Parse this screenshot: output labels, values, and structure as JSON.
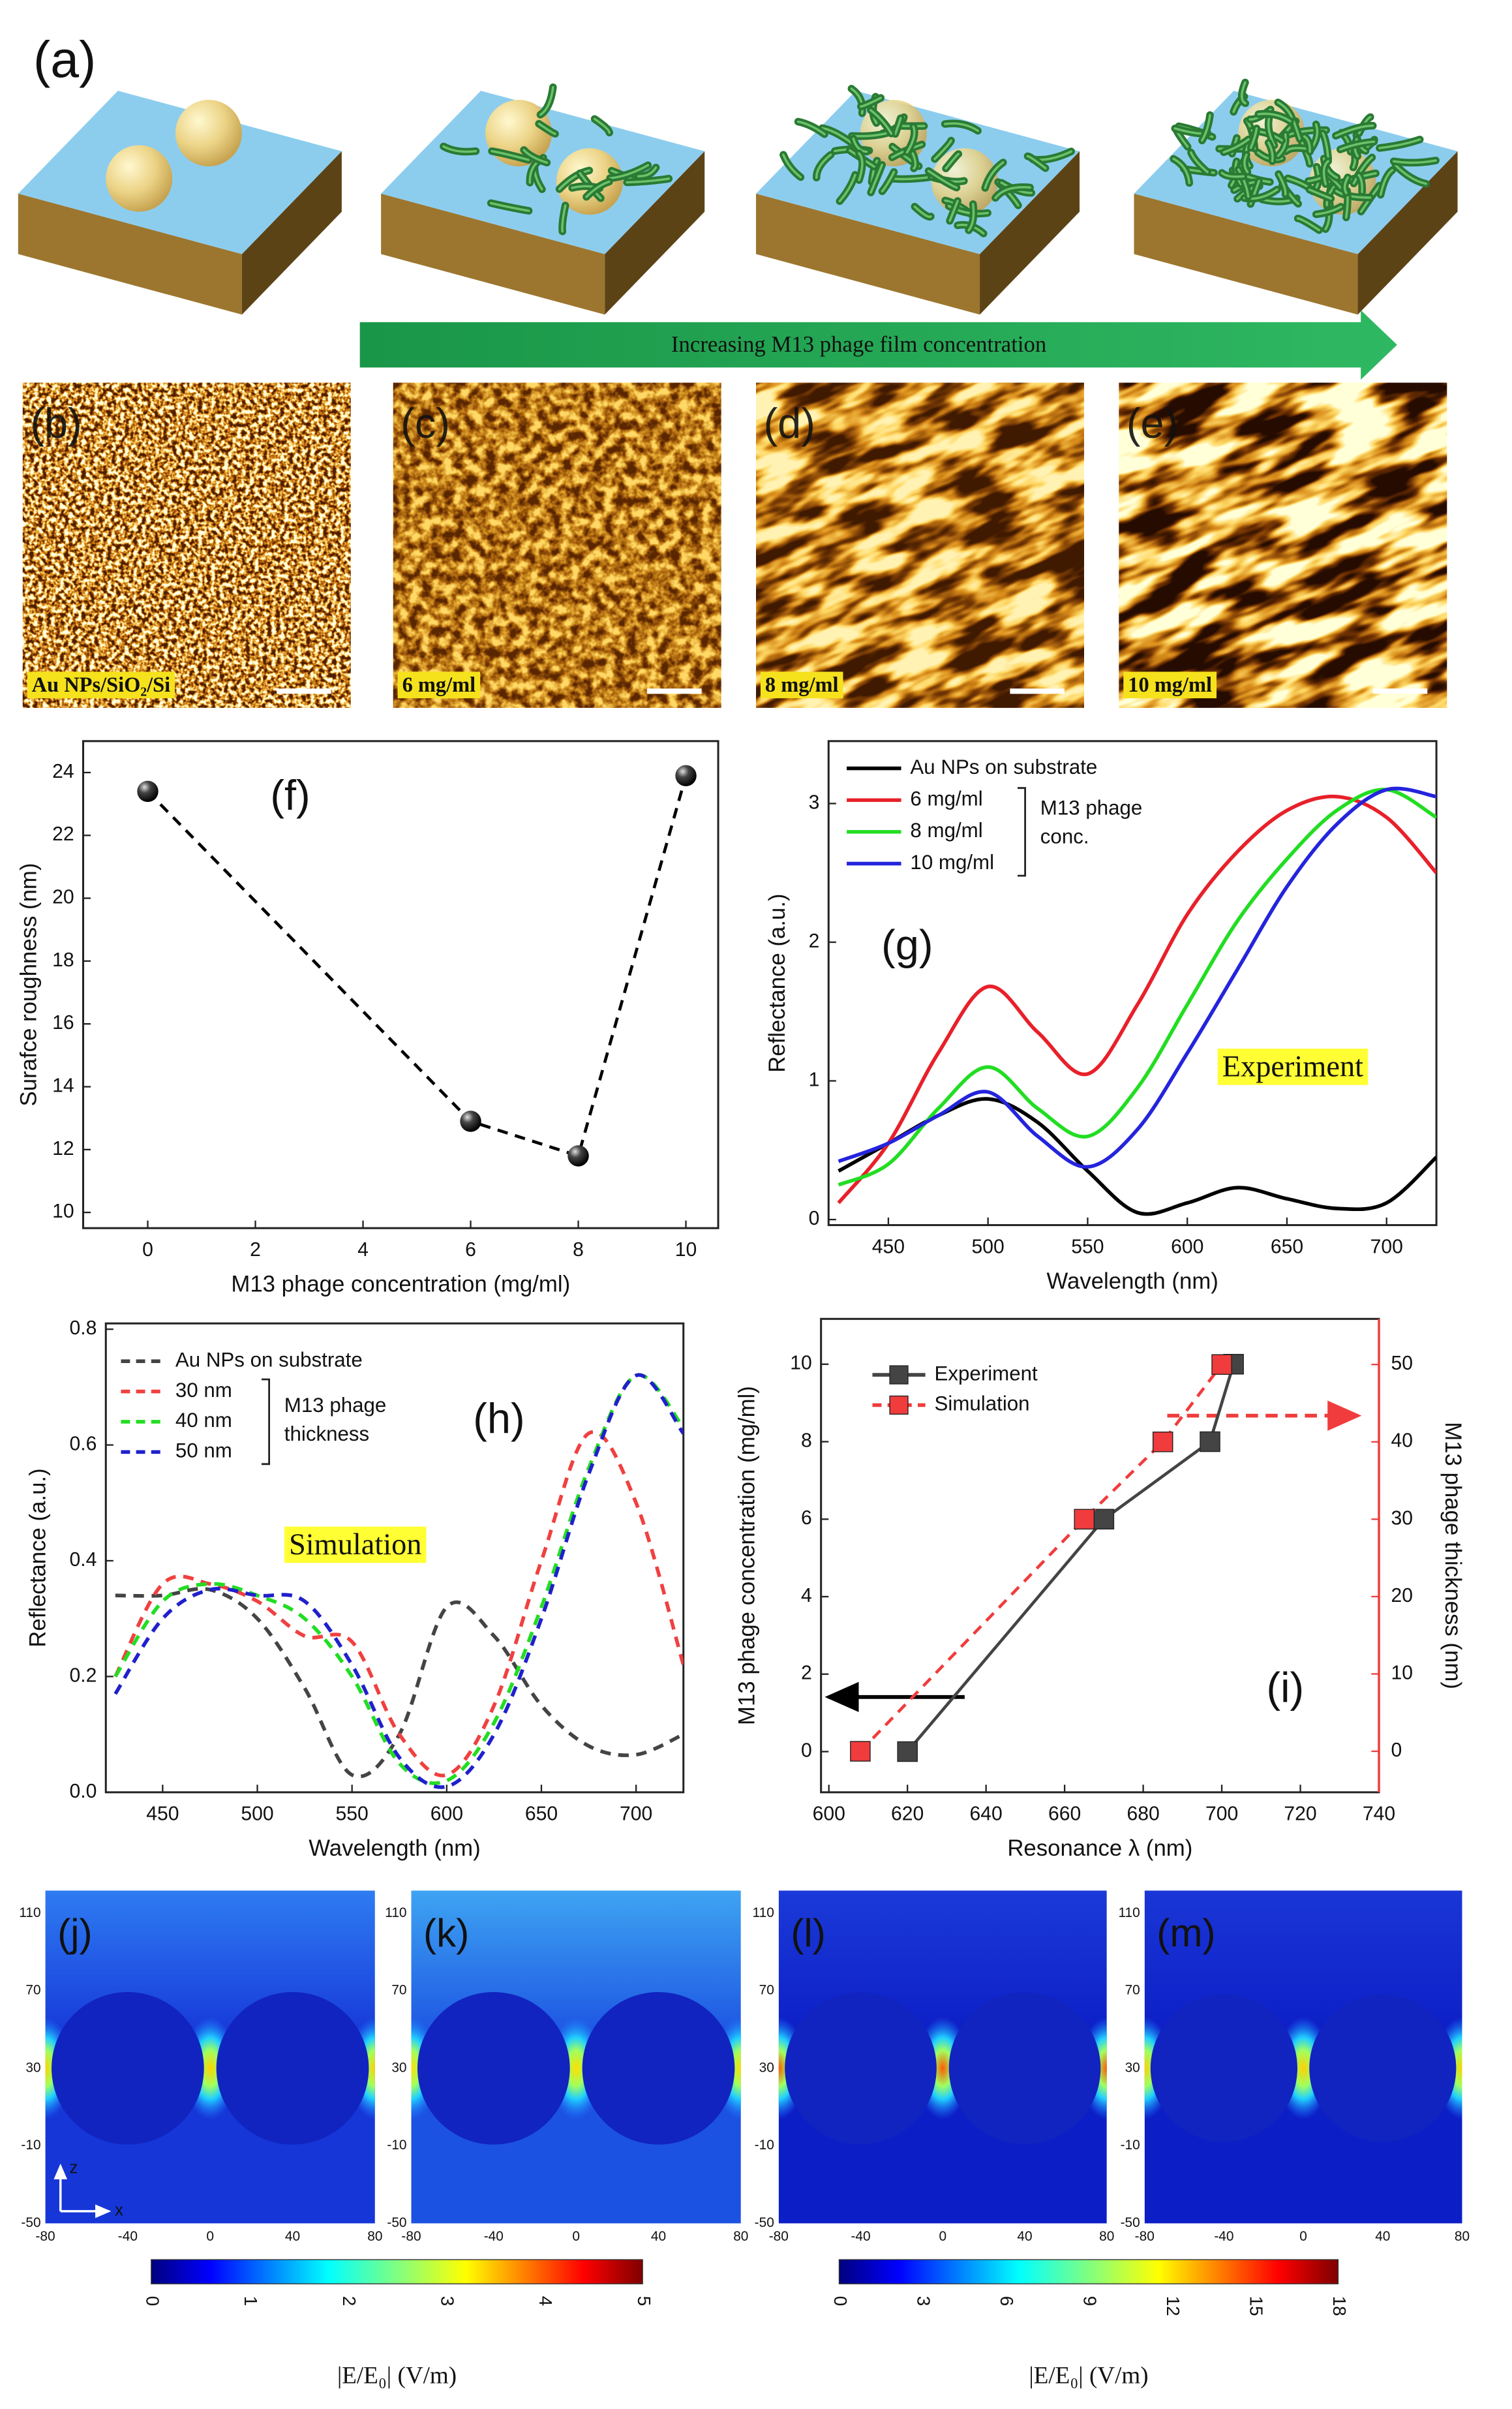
{
  "figure": {
    "panel_a": {
      "label": "(a)",
      "arrow_text": "Increasing M13 phage film concentration"
    },
    "afm": [
      {
        "label": "(b)",
        "caption": "Au NPs/SiO₂/Si"
      },
      {
        "label": "(c)",
        "caption": "6 mg/ml"
      },
      {
        "label": "(d)",
        "caption": "8 mg/ml"
      },
      {
        "label": "(e)",
        "caption": "10 mg/ml"
      }
    ],
    "field_maps": {
      "labels": [
        "(j)",
        "(k)",
        "(l)",
        "(m)"
      ],
      "y_ticks": [
        110,
        70,
        30,
        -10,
        -50
      ],
      "x_ticks": [
        -80,
        -40,
        0,
        40,
        80
      ],
      "axis_z": "z",
      "axis_x": "x",
      "colorbars": [
        {
          "ticks": [
            0,
            1,
            2,
            3,
            4,
            5
          ],
          "label": "|E/E₀| (V/m)"
        },
        {
          "ticks": [
            0,
            3,
            6,
            9,
            12,
            15,
            18
          ],
          "label": "|E/E₀| (V/m)"
        }
      ]
    }
  },
  "chart_data": [
    {
      "type": "line",
      "x": [
        0,
        6,
        8,
        10
      ],
      "series": [
        {
          "values": [
            23.4,
            12.9,
            11.8,
            23.9
          ],
          "color": "#000000",
          "line_style": "dashed",
          "marker": "circle"
        }
      ],
      "xlim": [
        -1.2,
        10.6
      ],
      "ylim": [
        9.5,
        25
      ],
      "xticks": [
        0,
        2,
        4,
        6,
        8,
        10
      ],
      "yticks": [
        10,
        12,
        14,
        16,
        18,
        20,
        22,
        24
      ],
      "xlabel": "M13 phage concentration (mg/ml)",
      "ylabel": "Surafce roughness (nm)",
      "annotations": [
        {
          "text": "(f)"
        }
      ]
    },
    {
      "type": "line",
      "x": [
        425,
        450,
        475,
        500,
        525,
        550,
        575,
        600,
        625,
        650,
        675,
        700,
        725
      ],
      "series": [
        {
          "name": "Au NPs on substrate",
          "color": "#000000",
          "line_style": "solid",
          "values": [
            0.35,
            0.55,
            0.75,
            0.87,
            0.7,
            0.35,
            0.05,
            0.12,
            0.23,
            0.15,
            0.08,
            0.12,
            0.45
          ]
        },
        {
          "name": "6 mg/ml",
          "color": "#e8202a",
          "line_style": "solid",
          "values": [
            0.12,
            0.55,
            1.2,
            1.68,
            1.35,
            1.05,
            1.55,
            2.2,
            2.65,
            2.95,
            3.05,
            2.9,
            2.5
          ]
        },
        {
          "name": "8 mg/ml",
          "color": "#22dd22",
          "line_style": "solid",
          "values": [
            0.25,
            0.4,
            0.8,
            1.1,
            0.8,
            0.6,
            0.95,
            1.55,
            2.15,
            2.6,
            2.95,
            3.1,
            2.9
          ]
        },
        {
          "name": "10 mg/ml",
          "color": "#2424dd",
          "line_style": "solid",
          "values": [
            0.42,
            0.55,
            0.75,
            0.92,
            0.6,
            0.38,
            0.65,
            1.2,
            1.8,
            2.4,
            2.85,
            3.1,
            3.05
          ]
        }
      ],
      "legend_note": [
        "M13 phage",
        "conc."
      ],
      "xlim": [
        420,
        725
      ],
      "ylim": [
        -0.04,
        3.45
      ],
      "xticks": [
        450,
        500,
        550,
        600,
        650,
        700
      ],
      "yticks": [
        0,
        1,
        2,
        3
      ],
      "xlabel": "Wavelength (nm)",
      "ylabel": "Reflectance (a.u.)",
      "annotations": [
        {
          "text": "(g)"
        },
        {
          "text": "Experiment",
          "highlight": "#ffff33"
        }
      ]
    },
    {
      "type": "line",
      "x": [
        425,
        450,
        475,
        500,
        525,
        550,
        575,
        600,
        625,
        650,
        675,
        700,
        725
      ],
      "series": [
        {
          "name": "Au NPs on substrate",
          "color": "#444444",
          "line_style": "dashed",
          "values": [
            0.34,
            0.34,
            0.35,
            0.3,
            0.18,
            0.03,
            0.1,
            0.32,
            0.27,
            0.15,
            0.08,
            0.065,
            0.1
          ]
        },
        {
          "name": "30 nm",
          "color": "#f04040",
          "line_style": "dashed",
          "values": [
            0.2,
            0.36,
            0.36,
            0.33,
            0.27,
            0.26,
            0.1,
            0.03,
            0.15,
            0.4,
            0.62,
            0.5,
            0.22
          ]
        },
        {
          "name": "40 nm",
          "color": "#22dd22",
          "line_style": "dashed",
          "values": [
            0.2,
            0.33,
            0.36,
            0.34,
            0.3,
            0.2,
            0.05,
            0.02,
            0.12,
            0.32,
            0.56,
            0.72,
            0.63
          ]
        },
        {
          "name": "50 nm",
          "color": "#2020cc",
          "line_style": "dashed",
          "values": [
            0.17,
            0.3,
            0.35,
            0.34,
            0.33,
            0.22,
            0.06,
            0.01,
            0.1,
            0.3,
            0.55,
            0.72,
            0.62
          ]
        }
      ],
      "legend_note": [
        "M13 phage",
        "thickness"
      ],
      "xlim": [
        420,
        725
      ],
      "ylim": [
        0,
        0.81
      ],
      "xticks": [
        450,
        500,
        550,
        600,
        650,
        700
      ],
      "yticks": [
        {
          "value": 0,
          "label": "0.0"
        },
        0.2,
        0.4,
        0.6,
        0.8
      ],
      "xlabel": "Wavelength (nm)",
      "ylabel": "Reflectance (a.u.)",
      "annotations": [
        {
          "text": "(h)"
        },
        {
          "text": "Simulation",
          "highlight": "#ffff33"
        }
      ]
    },
    {
      "type": "line",
      "series": [
        {
          "name": "Experiment",
          "color": "#444444",
          "line_style": "solid",
          "marker": "square",
          "x": [
            620,
            670,
            697,
            703
          ],
          "values": [
            0,
            6,
            8,
            10
          ]
        },
        {
          "name": "Simulation",
          "color": "#f03c3c",
          "line_style": "dashed",
          "marker": "square",
          "axis": "y2",
          "x": [
            608,
            665,
            685,
            700
          ],
          "values": [
            0,
            30,
            40,
            50
          ]
        }
      ],
      "xlim": [
        598,
        740
      ],
      "ylim": [
        -1.05,
        11.17
      ],
      "y2lim": [
        -5.3,
        55.9
      ],
      "xticks": [
        600,
        620,
        640,
        660,
        680,
        700,
        720,
        740
      ],
      "yticks": [
        0,
        2,
        4,
        6,
        8,
        10
      ],
      "y2ticks": [
        0,
        10,
        20,
        30,
        40,
        50
      ],
      "y2color": "#f03c3c",
      "xlabel": "Resonance λ (nm)",
      "ylabel": "M13 phage concentration (mg/ml)",
      "y2label": "M13 phage thickness (nm)",
      "annotations": [
        {
          "text": "(i)"
        }
      ]
    }
  ]
}
